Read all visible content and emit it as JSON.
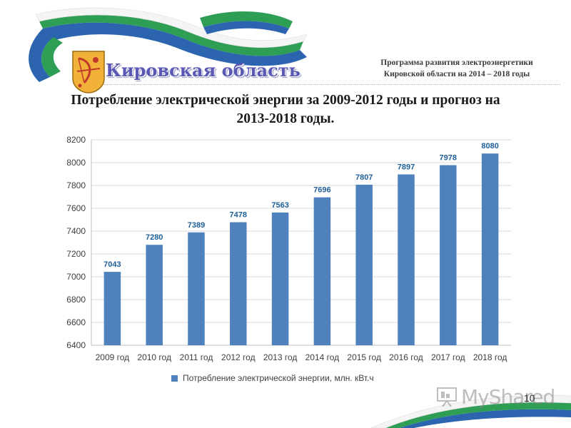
{
  "header": {
    "region_name": "Кировская область",
    "program_line1": "Программа развития электроэнергетики",
    "program_line2": "Кировской области на 2014 – 2018 годы"
  },
  "slide": {
    "title_line1": "Потребление электрической энергии за 2009-2012 годы и прогноз на",
    "title_line2": "2013-2018 годы.",
    "page_number": "10",
    "watermark": "MyShared"
  },
  "colors": {
    "bar": "#4f81bd",
    "label": "#1f5f9a",
    "ribbon_green": "#2e9e55",
    "ribbon_blue": "#2c64b0",
    "crest_bg": "#f2b23a"
  },
  "chart_data": {
    "type": "bar",
    "categories": [
      "2009 год",
      "2010 год",
      "2011 год",
      "2012 год",
      "2013 год",
      "2014 год",
      "2015 год",
      "2016 год",
      "2017 год",
      "2018 год"
    ],
    "series": [
      {
        "name": "Потребление электрической энергии, млн. кВт.ч",
        "values": [
          7043,
          7280,
          7389,
          7478,
          7563,
          7696,
          7807,
          7897,
          7978,
          8080
        ]
      }
    ],
    "ylim": [
      6400,
      8200
    ],
    "yticks": [
      6400,
      6600,
      6800,
      7000,
      7200,
      7400,
      7600,
      7800,
      8000,
      8200
    ],
    "grid": true,
    "legend": "bottom",
    "data_labels": true
  }
}
